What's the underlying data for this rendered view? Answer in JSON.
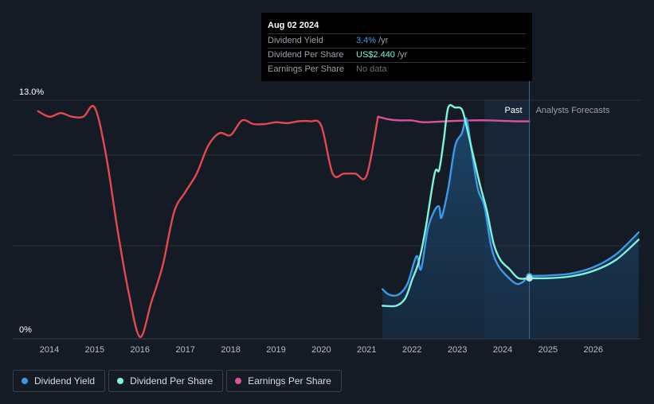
{
  "tooltip": {
    "date": "Aug 02 2024",
    "rows": [
      {
        "label": "Dividend Yield",
        "value": "3.4%",
        "unit": "/yr"
      },
      {
        "label": "Dividend Per Share",
        "value": "US$2.440",
        "unit": "/yr"
      },
      {
        "label": "Earnings Per Share",
        "value": "No data",
        "unit": ""
      }
    ]
  },
  "region_labels": {
    "past": "Past",
    "forecast": "Analysts Forecasts"
  },
  "legend": [
    {
      "label": "Dividend Yield",
      "color": "#3a9ae8"
    },
    {
      "label": "Dividend Per Share",
      "color": "#7ff3dc"
    },
    {
      "label": "Earnings Per Share",
      "color": "#d9529a"
    }
  ],
  "chart_data": {
    "type": "line",
    "title": "",
    "xlabel": "",
    "ylabel": "",
    "x_ticks": [
      "2014",
      "2015",
      "2016",
      "2017",
      "2018",
      "2019",
      "2020",
      "2021",
      "2022",
      "2023",
      "2024",
      "2025",
      "2026"
    ],
    "y_ticks": [
      "0%",
      "13.0%"
    ],
    "xlim": [
      2013.3,
      2027.0
    ],
    "ylim": [
      0,
      13.0
    ],
    "grid": "horizontal",
    "past_forecast_boundary": 2024.59,
    "series": [
      {
        "name": "Dividend Yield",
        "color": "#3a9ae8",
        "points": [
          [
            2021.35,
            2.7
          ],
          [
            2021.5,
            2.4
          ],
          [
            2021.7,
            2.4
          ],
          [
            2021.9,
            3.0
          ],
          [
            2022.1,
            4.5
          ],
          [
            2022.2,
            3.8
          ],
          [
            2022.35,
            6.0
          ],
          [
            2022.5,
            7.0
          ],
          [
            2022.6,
            7.2
          ],
          [
            2022.65,
            6.6
          ],
          [
            2022.8,
            8.2
          ],
          [
            2022.95,
            10.5
          ],
          [
            2023.1,
            11.2
          ],
          [
            2023.2,
            12.0
          ],
          [
            2023.3,
            10.5
          ],
          [
            2023.45,
            8.2
          ],
          [
            2023.6,
            7.2
          ],
          [
            2023.75,
            5.0
          ],
          [
            2023.9,
            4.0
          ],
          [
            2024.1,
            3.4
          ],
          [
            2024.3,
            3.0
          ],
          [
            2024.45,
            3.1
          ],
          [
            2024.59,
            3.4
          ],
          [
            2025.0,
            3.45
          ],
          [
            2025.5,
            3.55
          ],
          [
            2026.0,
            3.9
          ],
          [
            2026.5,
            4.6
          ],
          [
            2027.0,
            5.8
          ]
        ]
      },
      {
        "name": "Dividend Per Share",
        "color": "#7ff3dc",
        "points": [
          [
            2021.35,
            1.8
          ],
          [
            2021.65,
            1.8
          ],
          [
            2021.85,
            2.2
          ],
          [
            2022.0,
            3.2
          ],
          [
            2022.15,
            4.2
          ],
          [
            2022.3,
            6.0
          ],
          [
            2022.5,
            9.0
          ],
          [
            2022.6,
            9.2
          ],
          [
            2022.7,
            10.8
          ],
          [
            2022.8,
            12.6
          ],
          [
            2022.95,
            12.6
          ],
          [
            2023.1,
            12.5
          ],
          [
            2023.2,
            11.6
          ],
          [
            2023.35,
            10.0
          ],
          [
            2023.5,
            8.4
          ],
          [
            2023.65,
            7.0
          ],
          [
            2023.8,
            5.2
          ],
          [
            2023.95,
            4.3
          ],
          [
            2024.15,
            3.8
          ],
          [
            2024.35,
            3.3
          ],
          [
            2024.59,
            3.3
          ],
          [
            2025.0,
            3.3
          ],
          [
            2025.5,
            3.4
          ],
          [
            2026.0,
            3.7
          ],
          [
            2026.5,
            4.3
          ],
          [
            2027.0,
            5.4
          ]
        ]
      },
      {
        "name": "Earnings Per Share",
        "color": "#d9529a",
        "points": [
          [
            2021.25,
            12.1
          ],
          [
            2021.5,
            11.95
          ],
          [
            2021.75,
            11.9
          ],
          [
            2022.0,
            11.9
          ],
          [
            2022.25,
            11.8
          ],
          [
            2022.75,
            11.85
          ],
          [
            2023.25,
            11.9
          ],
          [
            2023.75,
            11.9
          ],
          [
            2024.25,
            11.85
          ],
          [
            2024.59,
            11.85
          ]
        ]
      },
      {
        "name": "Earnings Per Share (historical)",
        "color": "#e5484d",
        "points": [
          [
            2013.75,
            12.4
          ],
          [
            2014.0,
            12.1
          ],
          [
            2014.25,
            12.3
          ],
          [
            2014.5,
            12.1
          ],
          [
            2014.75,
            12.1
          ],
          [
            2015.0,
            12.6
          ],
          [
            2015.25,
            10.0
          ],
          [
            2015.5,
            6.0
          ],
          [
            2015.75,
            2.5
          ],
          [
            2016.0,
            0.1
          ],
          [
            2016.25,
            2.0
          ],
          [
            2016.5,
            4.0
          ],
          [
            2016.75,
            6.9
          ],
          [
            2017.0,
            8.0
          ],
          [
            2017.25,
            9.0
          ],
          [
            2017.5,
            10.5
          ],
          [
            2017.75,
            11.2
          ],
          [
            2018.0,
            11.1
          ],
          [
            2018.25,
            11.9
          ],
          [
            2018.5,
            11.7
          ],
          [
            2018.75,
            11.7
          ],
          [
            2019.0,
            11.8
          ],
          [
            2019.25,
            11.75
          ],
          [
            2019.5,
            11.85
          ],
          [
            2019.75,
            11.85
          ],
          [
            2020.0,
            11.6
          ],
          [
            2020.25,
            9.0
          ],
          [
            2020.5,
            9.0
          ],
          [
            2020.75,
            9.0
          ],
          [
            2021.0,
            8.9
          ],
          [
            2021.25,
            12.1
          ]
        ]
      }
    ]
  }
}
